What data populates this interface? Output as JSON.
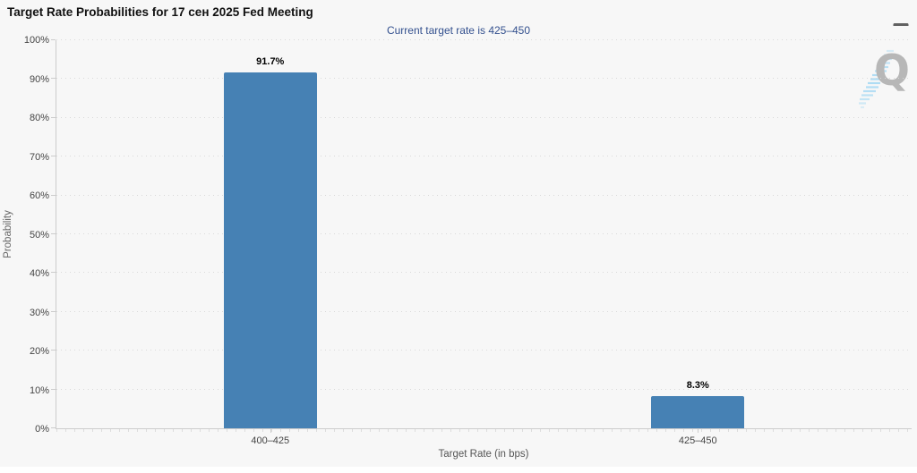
{
  "chart_data": {
    "type": "bar",
    "title": "Target Rate Probabilities for 17 сен 2025 Fed Meeting",
    "subtitle": "Current target rate is 425–450",
    "categories": [
      "400–425",
      "425–450"
    ],
    "values": [
      91.7,
      8.3
    ],
    "data_labels": [
      "91.7%",
      "8.3%"
    ],
    "xlabel": "Target Rate (in bps)",
    "ylabel": "Probability",
    "ylim": [
      0,
      100
    ],
    "yticks": [
      {
        "value": 0,
        "label": "0%"
      },
      {
        "value": 10,
        "label": "10%"
      },
      {
        "value": 20,
        "label": "20%"
      },
      {
        "value": 30,
        "label": "30%"
      },
      {
        "value": 40,
        "label": "40%"
      },
      {
        "value": 50,
        "label": "50%"
      },
      {
        "value": 60,
        "label": "60%"
      },
      {
        "value": 70,
        "label": "70%"
      },
      {
        "value": 80,
        "label": "80%"
      },
      {
        "value": 90,
        "label": "90%"
      },
      {
        "value": 100,
        "label": "100%"
      }
    ],
    "grid": "horizontal-dotted",
    "legend": "none",
    "bar_color": "#4681b4"
  },
  "toolbar": {
    "menu_icon": "hamburger-icon"
  },
  "watermark": {
    "letter": "Q"
  },
  "colors": {
    "background": "#f7f7f7",
    "bar": "#4681b4",
    "subtitle_text": "#33508e",
    "axis_line": "#cccccc",
    "gridline": "#d9d9d9",
    "watermark_letter": "#b7b7b7",
    "watermark_stripes": "#aedcf4"
  }
}
